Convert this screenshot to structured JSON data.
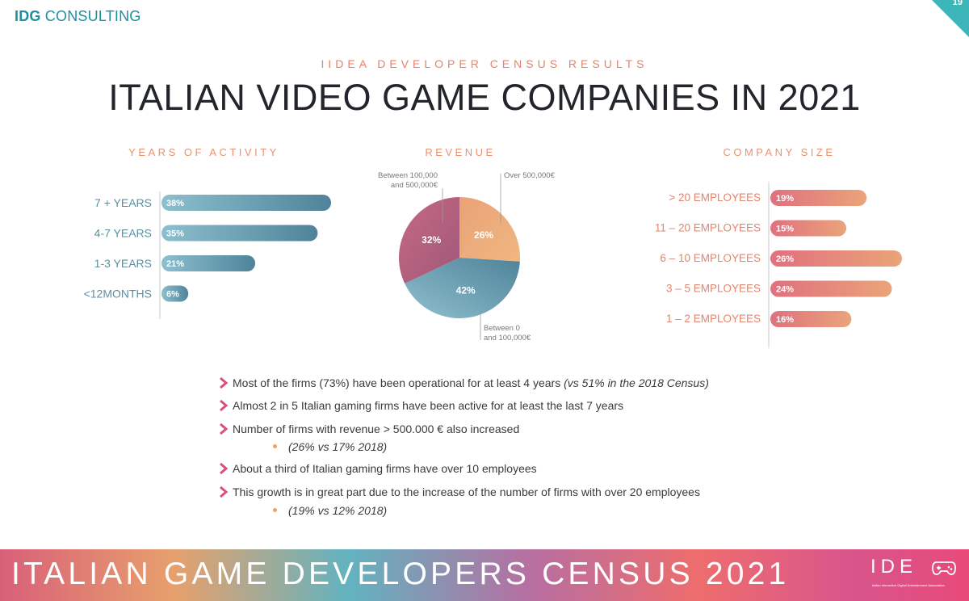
{
  "header": {
    "brand_bold": "IDG",
    "brand_rest": " CONSULTING",
    "page_number": "19",
    "kicker": "IIDEA DEVELOPER CENSUS RESULTS",
    "title": "ITALIAN VIDEO GAME COMPANIES IN 2021"
  },
  "colors": {
    "teal": "#5f9db0",
    "coral": "#e8826a",
    "pie_teal": "#6aa4ba",
    "pie_rose": "#b8607c",
    "pie_peach": "#eba57a"
  },
  "chart_data": [
    {
      "type": "bar",
      "title": "YEARS OF ACTIVITY",
      "orientation": "horizontal",
      "categories": [
        "7 + YEARS",
        "4-7 YEARS",
        "1-3 YEARS",
        "<12MONTHS"
      ],
      "values": [
        38,
        35,
        21,
        6
      ],
      "labels": [
        "38%",
        "35%",
        "21%",
        "6%"
      ]
    },
    {
      "type": "pie",
      "title": "REVENUE",
      "slices": [
        {
          "name": "Over 500,000€",
          "value": 26,
          "label": "26%"
        },
        {
          "name": "Between 0 and 100,000€",
          "value": 42,
          "label": "42%"
        },
        {
          "name": "Between 100,000 and 500,000€",
          "value": 32,
          "label": "32%"
        }
      ],
      "callouts": {
        "top_left": [
          "Between 100,000",
          "and 500,000€"
        ],
        "top_right": [
          "Over 500,000€"
        ],
        "bottom": [
          "Between 0",
          "and 100,000€"
        ]
      }
    },
    {
      "type": "bar",
      "title": "COMPANY SIZE",
      "orientation": "horizontal",
      "categories": [
        "> 20 EMPLOYEES",
        "11 – 20 EMPLOYEES",
        "6 – 10 EMPLOYEES",
        "3 – 5 EMPLOYEES",
        "1 – 2 EMPLOYEES"
      ],
      "values": [
        19,
        15,
        26,
        24,
        16
      ],
      "labels": [
        "19%",
        "15%",
        "26%",
        "24%",
        "16%"
      ]
    }
  ],
  "bullets": [
    {
      "text": "Most of the firms (73%) have been operational for at least 4 years ",
      "italic": "(vs 51% in the 2018 Census)"
    },
    {
      "text": "Almost 2 in 5 Italian gaming firms have been active for at least the last 7 years",
      "italic": ""
    },
    {
      "text": "Number of firms with revenue > 500.000 € also increased",
      "italic": ""
    },
    {
      "text": "About a third of Italian gaming firms have over 10 employees",
      "italic": ""
    },
    {
      "text": "This growth is in great part due to the increase of the number of firms with over 20 employees",
      "italic": ""
    }
  ],
  "subbullets": [
    "(26% vs 17% 2018)",
    "(19% vs 12% 2018)"
  ],
  "footer": {
    "title": "ITALIAN GAME DEVELOPERS CENSUS 2021",
    "logo": "IDE",
    "logo_sub": "Italian Interactive Digital Entertainment Association"
  }
}
